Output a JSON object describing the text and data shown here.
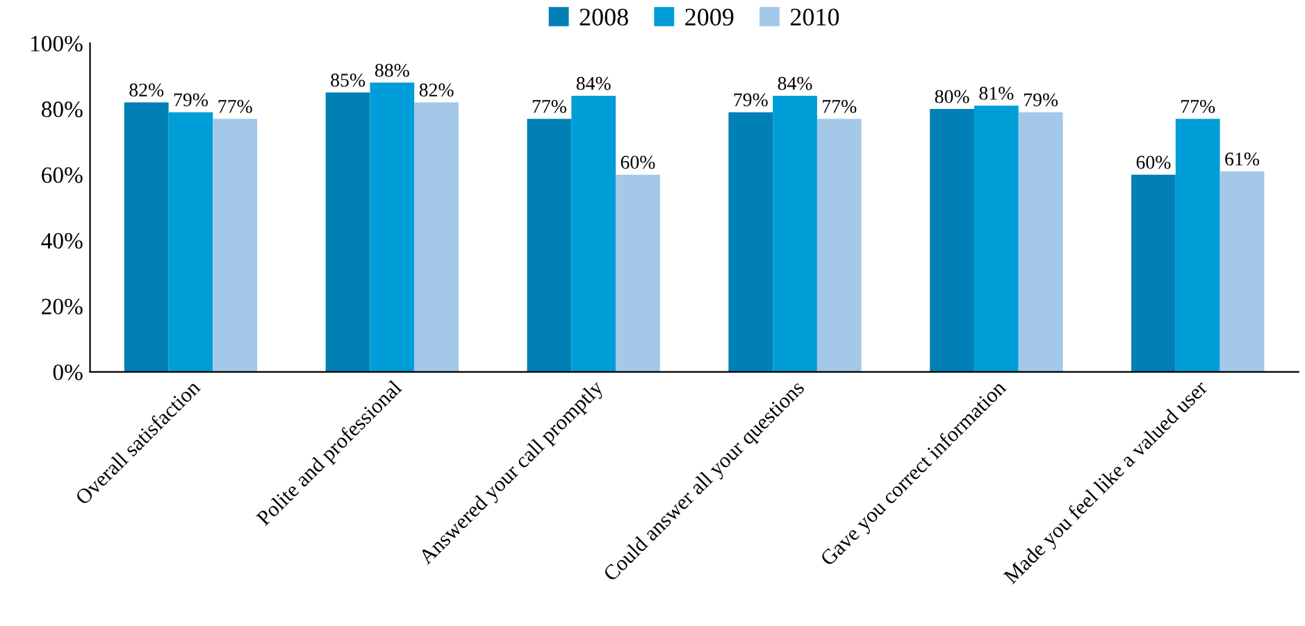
{
  "chart_data": {
    "type": "bar",
    "categories": [
      "Overall satisfaction",
      "Polite and professional",
      "Answered your call promptly",
      "Could answer all your questions",
      "Gave you correct information",
      "Made you feel like a valued user"
    ],
    "series": [
      {
        "name": "2008",
        "color": "#0080b4",
        "values": [
          82,
          85,
          77,
          79,
          80,
          60
        ],
        "value_labels": [
          "82%",
          "85%",
          "77%",
          "79%",
          "80%",
          "60%"
        ]
      },
      {
        "name": "2009",
        "color": "#009ed8",
        "values": [
          79,
          88,
          84,
          84,
          81,
          77
        ],
        "value_labels": [
          "79%",
          "88%",
          "84%",
          "84%",
          "81%",
          "77%"
        ]
      },
      {
        "name": "2010",
        "color": "#a3c8e8",
        "values": [
          77,
          82,
          60,
          77,
          79,
          61
        ],
        "value_labels": [
          "77%",
          "82%",
          "60%",
          "77%",
          "79%",
          "61%"
        ]
      }
    ],
    "ylim": [
      0,
      100
    ],
    "yticks": [
      {
        "value": 0,
        "label": "0%"
      },
      {
        "value": 20,
        "label": "20%"
      },
      {
        "value": 40,
        "label": "40%"
      },
      {
        "value": 60,
        "label": "60%"
      },
      {
        "value": 80,
        "label": "80%"
      },
      {
        "value": 100,
        "label": "100%"
      }
    ],
    "grid": false,
    "legend": "top"
  }
}
